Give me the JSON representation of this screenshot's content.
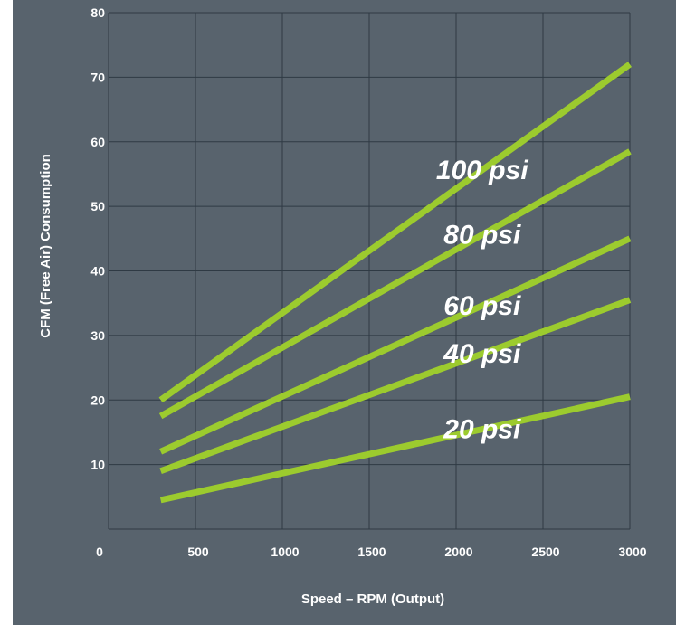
{
  "chart_data": {
    "type": "line",
    "xlabel": "Speed – RPM (Output)",
    "ylabel": "CFM (Free Air) Consumption",
    "xlim": [
      0,
      3000
    ],
    "ylim": [
      0,
      80
    ],
    "x_ticks": [
      "0",
      "500",
      "1000",
      "1500",
      "2000",
      "2500",
      "3000"
    ],
    "y_ticks": [
      "10",
      "20",
      "30",
      "40",
      "50",
      "60",
      "70",
      "80"
    ],
    "grid": true,
    "line_color": "#9ccb2e",
    "background_color": "#58636d",
    "grid_color": "#2f3a44",
    "series": [
      {
        "name": "100 psi",
        "x": [
          300,
          3000
        ],
        "y": [
          20,
          72
        ]
      },
      {
        "name": "80 psi",
        "x": [
          300,
          3000
        ],
        "y": [
          17.5,
          58.5
        ]
      },
      {
        "name": "60 psi",
        "x": [
          300,
          3000
        ],
        "y": [
          12,
          45
        ]
      },
      {
        "name": "40 psi",
        "x": [
          300,
          3000
        ],
        "y": [
          9,
          35.5
        ]
      },
      {
        "name": "20 psi",
        "x": [
          300,
          3000
        ],
        "y": [
          4.5,
          20.5
        ]
      }
    ]
  }
}
